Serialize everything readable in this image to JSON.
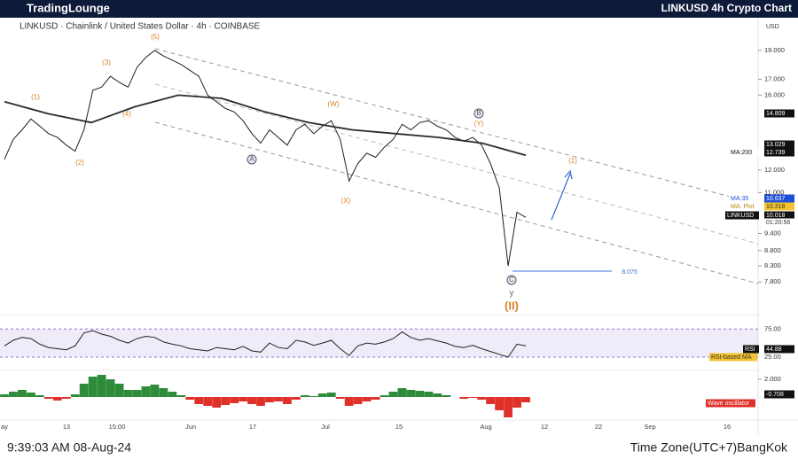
{
  "header": {
    "logo": "TradingLounge",
    "title": "LINKUSD 4h Crypto Chart"
  },
  "symbol_line": "LINKUSD · Chainlink / United States Dollar · 4h · COINBASE",
  "chart_data": {
    "type": "line",
    "log_scale": true,
    "ylim": [
      7,
      21.4
    ],
    "yticks": [
      {
        "value": 7.8,
        "label": "7.800"
      },
      {
        "value": 8.3,
        "label": "8.300"
      },
      {
        "value": 8.8,
        "label": "8.800"
      },
      {
        "value": 9.4,
        "label": "9.400"
      },
      {
        "value": 11,
        "label": "11.000"
      },
      {
        "value": 12,
        "label": "12.000"
      },
      {
        "value": 16,
        "label": "16.000"
      },
      {
        "value": 17,
        "label": "17.000"
      },
      {
        "value": 19,
        "label": "19.000"
      }
    ],
    "x_labels": [
      "ay",
      "13",
      "15:00",
      "Jun",
      "17",
      "Jul",
      "15",
      "Aug",
      "12",
      "22",
      "Sep",
      "16"
    ],
    "series": [
      {
        "name": "LINKUSD",
        "color": "#1e1e1e",
        "values": [
          12.5,
          13.5,
          14.0,
          14.6,
          14.2,
          13.8,
          13.6,
          13.2,
          12.9,
          14.0,
          16.3,
          16.5,
          17.2,
          16.8,
          16.5,
          17.8,
          18.5,
          19.0,
          18.6,
          18.3,
          18.0,
          17.6,
          17.2,
          16.0,
          15.6,
          15.2,
          15.0,
          14.5,
          13.8,
          13.3,
          14.0,
          13.6,
          13.2,
          14.0,
          14.3,
          13.8,
          14.2,
          14.5,
          13.5,
          11.5,
          12.3,
          12.8,
          12.6,
          13.1,
          13.5,
          14.3,
          14.0,
          14.4,
          14.5,
          14.2,
          14.0,
          13.6,
          13.4,
          13.6,
          13.2,
          12.3,
          11.2,
          8.3,
          10.2,
          10.0
        ]
      },
      {
        "name": "MA:200",
        "color": "#2b2b2b",
        "values": [
          15.6,
          14.9,
          14.4,
          15.3,
          16.0,
          15.8,
          15.0,
          14.4,
          14.0,
          13.8,
          13.6,
          13.3,
          12.7
        ]
      }
    ],
    "annotations": [
      "(1)",
      "(2)",
      "(3)",
      "(4)",
      "(5)",
      "(W)",
      "(X)",
      "(Y)",
      "A",
      "B",
      "C",
      "y",
      "(II)",
      "(1)",
      "8.075"
    ],
    "badges": [
      "USD",
      "14.809",
      "13.029",
      "MA:200",
      "12.739",
      "MA:35",
      "10.637",
      "MA: Plot",
      "10.318",
      "LINKUSD",
      "10.018",
      "01:20:56"
    ]
  },
  "rsi": {
    "type": "line",
    "ylim": [
      6,
      96
    ],
    "yticks": [
      {
        "value": 75,
        "label": "75.00"
      },
      {
        "value": 25,
        "label": "25.00"
      }
    ],
    "color": "#222222",
    "values": [
      45,
      55,
      60,
      58,
      48,
      42,
      40,
      38,
      45,
      68,
      72,
      66,
      62,
      55,
      50,
      58,
      62,
      60,
      52,
      48,
      45,
      40,
      38,
      36,
      42,
      40,
      38,
      44,
      36,
      34,
      50,
      42,
      40,
      55,
      52,
      46,
      50,
      55,
      40,
      28,
      45,
      50,
      48,
      52,
      58,
      70,
      60,
      55,
      58,
      54,
      50,
      44,
      42,
      46,
      40,
      35,
      30,
      25,
      48,
      45
    ],
    "badges": [
      "RSI",
      "44.88",
      "RSI-based MA"
    ]
  },
  "oscillator": {
    "type": "bar",
    "ylim": [
      -3,
      3
    ],
    "yticks": [
      {
        "value": 2,
        "label": "2.000"
      }
    ],
    "positive_color": "#2e8b3a",
    "negative_color": "#e0302a",
    "values": [
      0.3,
      0.6,
      0.8,
      0.5,
      0.2,
      -0.2,
      -0.4,
      -0.2,
      0.3,
      1.5,
      2.3,
      2.5,
      2.0,
      1.5,
      0.8,
      0.8,
      1.2,
      1.4,
      1.0,
      0.6,
      0.2,
      -0.3,
      -0.8,
      -1.0,
      -1.2,
      -0.9,
      -0.7,
      -0.5,
      -0.8,
      -1.0,
      -0.6,
      -0.5,
      -0.8,
      -0.3,
      0.2,
      0.1,
      0.4,
      0.5,
      -0.2,
      -1.0,
      -0.8,
      -0.5,
      -0.3,
      0.2,
      0.6,
      1.0,
      0.8,
      0.7,
      0.6,
      0.4,
      0.2,
      0.0,
      -0.2,
      -0.1,
      -0.3,
      -0.8,
      -1.5,
      -2.3,
      -1.2,
      -0.6
    ],
    "badges": [
      "-0.708",
      "Wave oscillator"
    ]
  },
  "footer": {
    "time": "9:39:03 AM 08-Aug-24",
    "timezone": "Time Zone(UTC+7)BangKok"
  }
}
